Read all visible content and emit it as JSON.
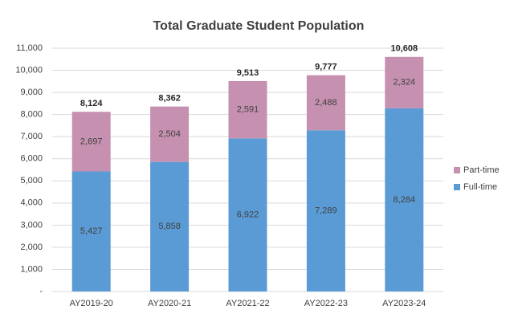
{
  "chart_data": {
    "type": "stacked_bar",
    "title": "Total Graduate Student Population",
    "categories": [
      "AY2019-20",
      "AY2020-21",
      "AY2021-22",
      "AY2022-23",
      "AY2023-24"
    ],
    "series": [
      {
        "name": "Full-time",
        "color": "#5b9bd5",
        "values": [
          5427,
          5858,
          6922,
          7289,
          8284
        ],
        "value_labels": [
          "5,427",
          "5,858",
          "6,922",
          "7,289",
          "8,284"
        ]
      },
      {
        "name": "Part-time",
        "color": "#c690b0",
        "values": [
          2697,
          2504,
          2591,
          2488,
          2324
        ],
        "value_labels": [
          "2,697",
          "2,504",
          "2,591",
          "2,488",
          "2,324"
        ]
      }
    ],
    "totals": [
      8124,
      8362,
      9513,
      9777,
      10608
    ],
    "totals_labels": [
      "8,124",
      "8,362",
      "9,513",
      "9,777",
      "10,608"
    ],
    "ylim": [
      0,
      11000
    ],
    "yticks": [
      {
        "value": 0,
        "label": "-"
      },
      {
        "value": 1000,
        "label": "1,000"
      },
      {
        "value": 2000,
        "label": "2,000"
      },
      {
        "value": 3000,
        "label": "3,000"
      },
      {
        "value": 4000,
        "label": "4,000"
      },
      {
        "value": 5000,
        "label": "5,000"
      },
      {
        "value": 6000,
        "label": "6,000"
      },
      {
        "value": 7000,
        "label": "7,000"
      },
      {
        "value": 8000,
        "label": "8,000"
      },
      {
        "value": 9000,
        "label": "9,000"
      },
      {
        "value": 10000,
        "label": "10,000"
      },
      {
        "value": 11000,
        "label": "11,000"
      }
    ],
    "grid": true,
    "legend": "right"
  }
}
